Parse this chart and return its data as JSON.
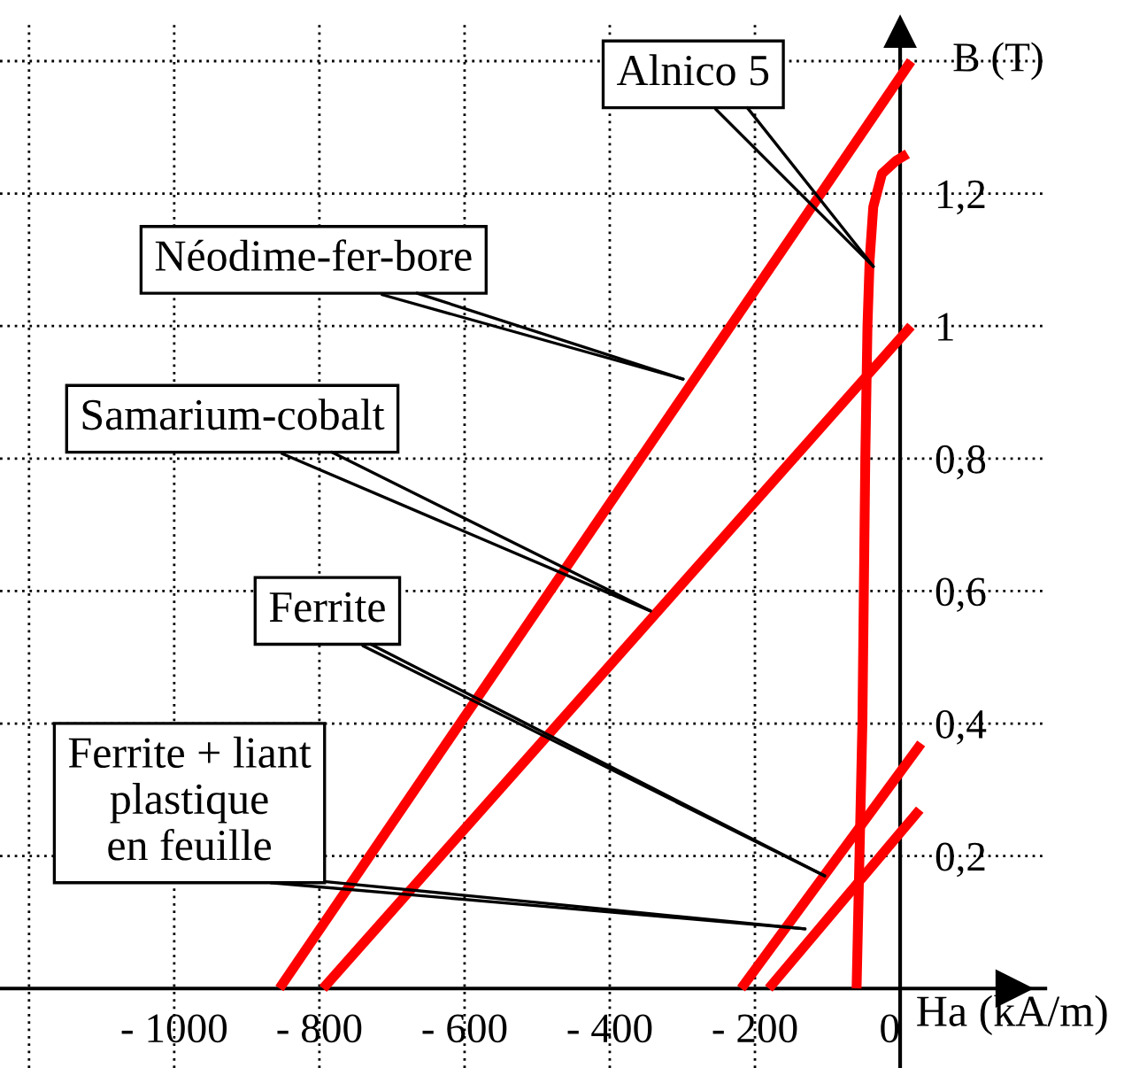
{
  "chart_data": {
    "type": "line",
    "xlabel": "Ha (kA/m)",
    "ylabel": "B (T)",
    "series": [
      {
        "color": "#ff0000",
        "x": [
          -855,
          15
        ],
        "values": [
          0,
          1.4
        ]
      },
      {
        "color": "#ff0000",
        "x": [
          -795,
          15
        ],
        "values": [
          0,
          1.0
        ]
      },
      {
        "color": "#ff0000",
        "x": [
          -219,
          29
        ],
        "values": [
          0,
          0.37
        ]
      },
      {
        "color": "#ff0000",
        "x": [
          -181,
          27
        ],
        "values": [
          0,
          0.27
        ]
      },
      {
        "color": "#ff0000",
        "x": [
          -60,
          -52,
          -48,
          -45,
          -42,
          -37,
          -25,
          -5,
          10
        ],
        "values": [
          0,
          0.4,
          0.8,
          1.0,
          1.1,
          1.18,
          1.23,
          1.25,
          1.26
        ]
      }
    ],
    "annotations": [
      {
        "text": "Alnico 5",
        "x": -37,
        "y": 1.09
      },
      {
        "text": "Néodime-fer-bore",
        "x": -299,
        "y": 0.92
      },
      {
        "text": "Samarium-cobalt",
        "x": -344,
        "y": 0.57
      },
      {
        "text": "Ferrite",
        "x": -104,
        "y": 0.17
      },
      {
        "text": "Ferrite + liant\nplastique\nen feuille",
        "x": -131,
        "y": 0.09
      }
    ],
    "xlim": [
      -1240,
      200
    ],
    "ylim": [
      -0.12,
      1.46
    ],
    "xticks": [
      {
        "value": -1200,
        "label": null
      },
      {
        "value": -1000,
        "label": "- 1000"
      },
      {
        "value": -800,
        "label": "- 800"
      },
      {
        "value": -600,
        "label": "- 600"
      },
      {
        "value": -400,
        "label": "- 400"
      },
      {
        "value": -200,
        "label": "- 200"
      },
      0
    ],
    "yticks": [
      {
        "value": 0.2,
        "label": "0,2"
      },
      {
        "value": 0.4,
        "label": "0,4"
      },
      {
        "value": 0.6,
        "label": "0,6"
      },
      {
        "value": 0.8,
        "label": "0,8"
      },
      {
        "value": 1,
        "label": "1"
      },
      {
        "value": 1.2,
        "label": "1,2"
      },
      {
        "value": 1.4,
        "label": null
      }
    ],
    "grid": true,
    "marker": "none",
    "line_style": "solid"
  }
}
